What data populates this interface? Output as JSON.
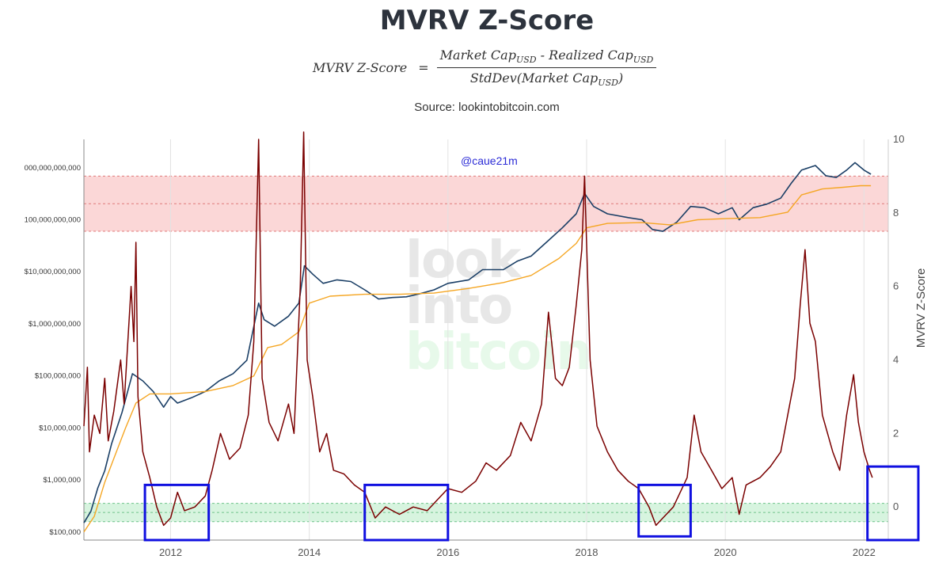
{
  "title": "MVRV Z-Score",
  "formula": {
    "lhs": "MVRV Z-Score",
    "equals": "=",
    "numerator_a": "Market Cap",
    "numerator_a_sub": "USD",
    "numerator_op": " - ",
    "numerator_b": "Realized Cap",
    "numerator_b_sub": "USD",
    "denominator_pre": "StdDev(Market Cap",
    "denominator_sub": "USD",
    "denominator_post": ")"
  },
  "source": "Source: lookintobitcoin.com",
  "handle": "@caue21m",
  "watermark": [
    "look",
    "into",
    "bitcoin"
  ],
  "colors": {
    "market_cap": "#1b3f66",
    "realized_cap": "#f5a623",
    "z_score": "#7a0000",
    "top_band": "#f9c9c9",
    "bottom_band": "#c9f0d4",
    "highlight_box": "#1010e0",
    "handle": "#2b2bd6"
  },
  "chart_data": {
    "type": "line",
    "x_ticks": [
      "2012",
      "2014",
      "2016",
      "2018",
      "2020",
      "2022"
    ],
    "x_tick_values": [
      2012,
      2014,
      2016,
      2018,
      2020,
      2022
    ],
    "xlim": [
      2010.75,
      2022.35
    ],
    "left_axis": {
      "scale": "log",
      "ticks": [
        "$100,000",
        "$1,000,000",
        "$10,000,000",
        "$100,000,000",
        "$1,000,000,000",
        "$10,000,000,000",
        "100,000,000,000",
        "000,000,000,000"
      ],
      "tick_values": [
        100000,
        1000000,
        10000000,
        100000000,
        1000000000,
        10000000000,
        100000000000,
        1000000000000
      ],
      "ylim": [
        70000,
        3500000000000
      ]
    },
    "right_axis": {
      "label": "MVRV Z-Score",
      "ticks": [
        "0",
        "2",
        "4",
        "6",
        "8",
        "10"
      ],
      "tick_values": [
        0,
        2,
        4,
        6,
        8,
        10
      ],
      "ylim": [
        -0.9,
        10
      ]
    },
    "bands": [
      {
        "name": "overvalued",
        "from": 7.5,
        "to": 9
      },
      {
        "name": "undervalued",
        "from": -0.4,
        "to": 0.1
      }
    ],
    "series": [
      {
        "name": "Market Cap",
        "axis": "left",
        "points": [
          [
            2010.75,
            150000
          ],
          [
            2010.85,
            250000
          ],
          [
            2010.95,
            700000
          ],
          [
            2011.05,
            1500000
          ],
          [
            2011.15,
            5000000
          ],
          [
            2011.3,
            20000000
          ],
          [
            2011.45,
            110000000
          ],
          [
            2011.6,
            80000000
          ],
          [
            2011.75,
            50000000
          ],
          [
            2011.9,
            25000000
          ],
          [
            2012.0,
            40000000
          ],
          [
            2012.1,
            30000000
          ],
          [
            2012.3,
            38000000
          ],
          [
            2012.5,
            50000000
          ],
          [
            2012.7,
            80000000
          ],
          [
            2012.9,
            110000000
          ],
          [
            2013.1,
            200000000
          ],
          [
            2013.27,
            2500000000
          ],
          [
            2013.35,
            1200000000
          ],
          [
            2013.5,
            900000000
          ],
          [
            2013.7,
            1400000000
          ],
          [
            2013.85,
            2500000000
          ],
          [
            2013.93,
            13000000000
          ],
          [
            2014.05,
            9000000000
          ],
          [
            2014.2,
            6000000000
          ],
          [
            2014.4,
            7000000000
          ],
          [
            2014.6,
            6500000000
          ],
          [
            2014.8,
            4500000000
          ],
          [
            2015.0,
            3000000000
          ],
          [
            2015.2,
            3200000000
          ],
          [
            2015.4,
            3300000000
          ],
          [
            2015.6,
            3800000000
          ],
          [
            2015.8,
            4500000000
          ],
          [
            2016.0,
            6000000000
          ],
          [
            2016.3,
            7000000000
          ],
          [
            2016.5,
            11000000000
          ],
          [
            2016.8,
            11000000000
          ],
          [
            2017.0,
            16000000000
          ],
          [
            2017.2,
            20000000000
          ],
          [
            2017.45,
            40000000000
          ],
          [
            2017.65,
            70000000000
          ],
          [
            2017.85,
            130000000000
          ],
          [
            2017.97,
            320000000000
          ],
          [
            2018.1,
            180000000000
          ],
          [
            2018.3,
            130000000000
          ],
          [
            2018.6,
            110000000000
          ],
          [
            2018.8,
            100000000000
          ],
          [
            2018.95,
            65000000000
          ],
          [
            2019.1,
            60000000000
          ],
          [
            2019.3,
            90000000000
          ],
          [
            2019.5,
            180000000000
          ],
          [
            2019.7,
            170000000000
          ],
          [
            2019.9,
            130000000000
          ],
          [
            2020.1,
            170000000000
          ],
          [
            2020.2,
            100000000000
          ],
          [
            2020.4,
            170000000000
          ],
          [
            2020.6,
            200000000000
          ],
          [
            2020.8,
            260000000000
          ],
          [
            2020.95,
            500000000000
          ],
          [
            2021.1,
            900000000000
          ],
          [
            2021.3,
            1100000000000
          ],
          [
            2021.45,
            700000000000
          ],
          [
            2021.6,
            650000000000
          ],
          [
            2021.75,
            900000000000
          ],
          [
            2021.87,
            1250000000000
          ],
          [
            2022.0,
            900000000000
          ],
          [
            2022.1,
            750000000000
          ]
        ]
      },
      {
        "name": "Realized Cap",
        "axis": "left",
        "points": [
          [
            2010.75,
            100000
          ],
          [
            2010.9,
            200000
          ],
          [
            2011.05,
            900000
          ],
          [
            2011.2,
            3000000
          ],
          [
            2011.35,
            10000000
          ],
          [
            2011.5,
            30000000
          ],
          [
            2011.7,
            45000000
          ],
          [
            2012.0,
            45000000
          ],
          [
            2012.5,
            50000000
          ],
          [
            2012.9,
            65000000
          ],
          [
            2013.2,
            100000000
          ],
          [
            2013.4,
            350000000
          ],
          [
            2013.6,
            400000000
          ],
          [
            2013.85,
            700000000
          ],
          [
            2014.0,
            2500000000
          ],
          [
            2014.3,
            3400000000
          ],
          [
            2014.8,
            3700000000
          ],
          [
            2015.3,
            3700000000
          ],
          [
            2015.8,
            3900000000
          ],
          [
            2016.3,
            4800000000
          ],
          [
            2016.8,
            6200000000
          ],
          [
            2017.2,
            8500000000
          ],
          [
            2017.6,
            18000000000
          ],
          [
            2017.85,
            35000000000
          ],
          [
            2018.0,
            70000000000
          ],
          [
            2018.3,
            85000000000
          ],
          [
            2018.8,
            88000000000
          ],
          [
            2019.2,
            80000000000
          ],
          [
            2019.6,
            100000000000
          ],
          [
            2020.0,
            105000000000
          ],
          [
            2020.5,
            110000000000
          ],
          [
            2020.9,
            140000000000
          ],
          [
            2021.1,
            300000000000
          ],
          [
            2021.4,
            390000000000
          ],
          [
            2021.7,
            420000000000
          ],
          [
            2021.95,
            450000000000
          ],
          [
            2022.1,
            450000000000
          ]
        ]
      },
      {
        "name": "MVRV Z-Score",
        "axis": "right",
        "points": [
          [
            2010.75,
            2.2
          ],
          [
            2010.8,
            3.8
          ],
          [
            2010.83,
            1.5
          ],
          [
            2010.9,
            2.5
          ],
          [
            2010.98,
            2.0
          ],
          [
            2011.05,
            3.5
          ],
          [
            2011.1,
            1.8
          ],
          [
            2011.18,
            2.6
          ],
          [
            2011.28,
            4.0
          ],
          [
            2011.33,
            2.8
          ],
          [
            2011.43,
            6.0
          ],
          [
            2011.47,
            4.5
          ],
          [
            2011.5,
            7.2
          ],
          [
            2011.53,
            3.0
          ],
          [
            2011.6,
            1.5
          ],
          [
            2011.7,
            0.8
          ],
          [
            2011.8,
            0.0
          ],
          [
            2011.9,
            -0.5
          ],
          [
            2012.0,
            -0.3
          ],
          [
            2012.1,
            0.4
          ],
          [
            2012.2,
            -0.1
          ],
          [
            2012.35,
            0.0
          ],
          [
            2012.5,
            0.3
          ],
          [
            2012.6,
            1.0
          ],
          [
            2012.72,
            2.0
          ],
          [
            2012.85,
            1.3
          ],
          [
            2013.0,
            1.6
          ],
          [
            2013.12,
            2.5
          ],
          [
            2013.2,
            4.5
          ],
          [
            2013.27,
            10.0
          ],
          [
            2013.32,
            3.5
          ],
          [
            2013.42,
            2.3
          ],
          [
            2013.55,
            1.8
          ],
          [
            2013.7,
            2.8
          ],
          [
            2013.78,
            2.0
          ],
          [
            2013.87,
            6.0
          ],
          [
            2013.92,
            10.2
          ],
          [
            2013.97,
            4.0
          ],
          [
            2014.05,
            3.0
          ],
          [
            2014.15,
            1.5
          ],
          [
            2014.25,
            2.0
          ],
          [
            2014.35,
            1.0
          ],
          [
            2014.5,
            0.9
          ],
          [
            2014.65,
            0.6
          ],
          [
            2014.8,
            0.4
          ],
          [
            2014.95,
            -0.3
          ],
          [
            2015.1,
            0.0
          ],
          [
            2015.3,
            -0.2
          ],
          [
            2015.5,
            0.0
          ],
          [
            2015.7,
            -0.1
          ],
          [
            2015.85,
            0.2
          ],
          [
            2016.0,
            0.5
          ],
          [
            2016.2,
            0.4
          ],
          [
            2016.4,
            0.7
          ],
          [
            2016.55,
            1.2
          ],
          [
            2016.7,
            1.0
          ],
          [
            2016.9,
            1.4
          ],
          [
            2017.05,
            2.3
          ],
          [
            2017.2,
            1.8
          ],
          [
            2017.35,
            2.8
          ],
          [
            2017.45,
            5.3
          ],
          [
            2017.55,
            3.5
          ],
          [
            2017.65,
            3.3
          ],
          [
            2017.75,
            3.8
          ],
          [
            2017.85,
            5.5
          ],
          [
            2017.93,
            7.0
          ],
          [
            2017.97,
            9.0
          ],
          [
            2018.05,
            4.0
          ],
          [
            2018.15,
            2.2
          ],
          [
            2018.3,
            1.5
          ],
          [
            2018.45,
            1.0
          ],
          [
            2018.6,
            0.7
          ],
          [
            2018.75,
            0.5
          ],
          [
            2018.9,
            0.0
          ],
          [
            2019.0,
            -0.5
          ],
          [
            2019.1,
            -0.3
          ],
          [
            2019.25,
            0.0
          ],
          [
            2019.45,
            0.8
          ],
          [
            2019.55,
            2.5
          ],
          [
            2019.65,
            1.5
          ],
          [
            2019.8,
            1.0
          ],
          [
            2019.95,
            0.5
          ],
          [
            2020.1,
            0.8
          ],
          [
            2020.2,
            -0.2
          ],
          [
            2020.3,
            0.6
          ],
          [
            2020.5,
            0.8
          ],
          [
            2020.65,
            1.1
          ],
          [
            2020.8,
            1.5
          ],
          [
            2020.9,
            2.5
          ],
          [
            2021.0,
            3.5
          ],
          [
            2021.08,
            5.5
          ],
          [
            2021.15,
            7.0
          ],
          [
            2021.22,
            5.0
          ],
          [
            2021.3,
            4.5
          ],
          [
            2021.4,
            2.5
          ],
          [
            2021.55,
            1.5
          ],
          [
            2021.65,
            1.0
          ],
          [
            2021.75,
            2.5
          ],
          [
            2021.85,
            3.6
          ],
          [
            2021.92,
            2.3
          ],
          [
            2022.0,
            1.5
          ],
          [
            2022.08,
            1.0
          ],
          [
            2022.12,
            0.8
          ]
        ]
      }
    ],
    "highlight_boxes": [
      {
        "x": [
          2011.63,
          2012.55
        ],
        "y": [
          -0.9,
          0.6
        ]
      },
      {
        "x": [
          2014.8,
          2016.0
        ],
        "y": [
          -0.9,
          0.6
        ]
      },
      {
        "x": [
          2018.75,
          2019.5
        ],
        "y": [
          -0.8,
          0.6
        ]
      },
      {
        "x": [
          2022.05,
          2022.8
        ],
        "y": [
          -0.9,
          1.1
        ]
      }
    ]
  }
}
